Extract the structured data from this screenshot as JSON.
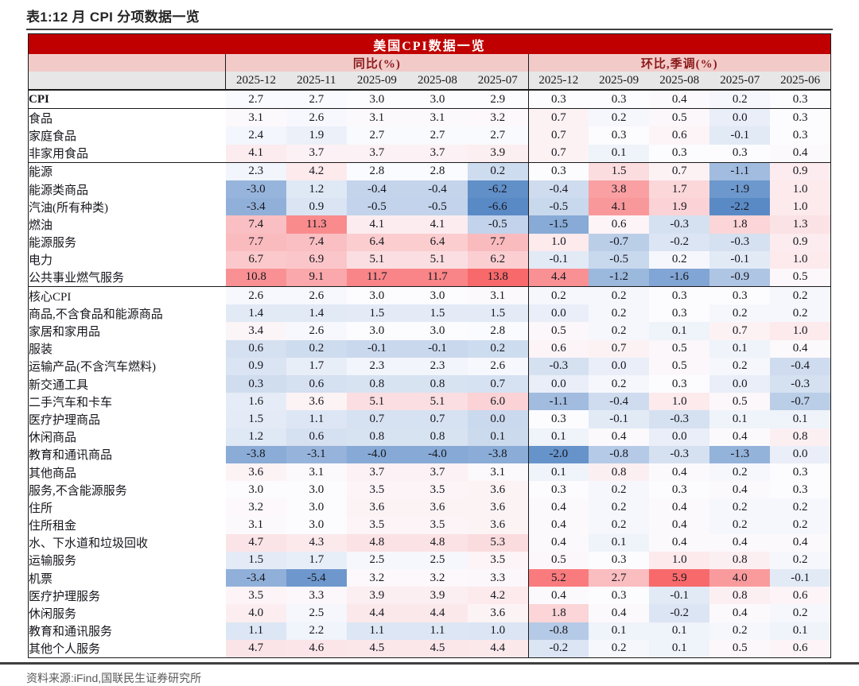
{
  "page": {
    "title": "表1:12 月 CPI 分项数据一览",
    "source_note": "资料来源:iFind,国联民生证券研究所"
  },
  "table": {
    "banner_title": "美国CPI数据一览",
    "group_headers": {
      "yoy": "同比(%)",
      "mom": "环比,季调(%)"
    },
    "columns_yoy": [
      "2025-12",
      "2025-11",
      "2025-09",
      "2025-08",
      "2025-07"
    ],
    "columns_mom": [
      "2025-12",
      "2025-09",
      "2025-08",
      "2025-07",
      "2025-06"
    ],
    "colors": {
      "banner_bg": "#C00000",
      "banner_text": "#FFFFFF",
      "group_bg": "#F2CBC9",
      "group_text": "#8B1A1A",
      "date_bg": "#E7E7E7",
      "border": "#1A1A1A",
      "heat_negative": "#5A8AC6",
      "heat_neutral": "#FCFCFF",
      "heat_positive": "#F8696B"
    },
    "heatmap_scales": {
      "yoy": {
        "min": -6.6,
        "mid": 2.9,
        "max": 13.8
      },
      "mom": {
        "min": -2.2,
        "mid": 0.3,
        "max": 5.9
      }
    },
    "rows": [
      {
        "label": "CPI",
        "indent": 0,
        "bold": true,
        "section_end": true,
        "yoy": [
          "2.7",
          "2.7",
          "3.0",
          "3.0",
          "2.9"
        ],
        "mom": [
          "0.3",
          "0.3",
          "0.4",
          "0.2",
          "0.3"
        ]
      },
      {
        "label": "食品",
        "indent": 0,
        "bold": false,
        "section_end": false,
        "yoy": [
          "3.1",
          "2.6",
          "3.1",
          "3.1",
          "3.2"
        ],
        "mom": [
          "0.7",
          "0.2",
          "0.5",
          "0.0",
          "0.3"
        ]
      },
      {
        "label": "家庭食品",
        "indent": 1,
        "bold": false,
        "section_end": false,
        "yoy": [
          "2.4",
          "1.9",
          "2.7",
          "2.7",
          "2.7"
        ],
        "mom": [
          "0.7",
          "0.3",
          "0.6",
          "-0.1",
          "0.3"
        ]
      },
      {
        "label": "非家用食品",
        "indent": 1,
        "bold": false,
        "section_end": true,
        "yoy": [
          "4.1",
          "3.7",
          "3.7",
          "3.7",
          "3.9"
        ],
        "mom": [
          "0.7",
          "0.1",
          "0.3",
          "0.3",
          "0.4"
        ]
      },
      {
        "label": "能源",
        "indent": 0,
        "bold": false,
        "section_end": false,
        "yoy": [
          "2.3",
          "4.2",
          "2.8",
          "2.8",
          "0.2"
        ],
        "mom": [
          "0.3",
          "1.5",
          "0.7",
          "-1.1",
          "0.9"
        ]
      },
      {
        "label": "能源类商品",
        "indent": 1,
        "bold": false,
        "section_end": false,
        "yoy": [
          "-3.0",
          "1.2",
          "-0.4",
          "-0.4",
          "-6.2"
        ],
        "mom": [
          "-0.4",
          "3.8",
          "1.7",
          "-1.9",
          "1.0"
        ]
      },
      {
        "label": "汽油(所有种类)",
        "indent": 2,
        "bold": false,
        "section_end": false,
        "yoy": [
          "-3.4",
          "0.9",
          "-0.5",
          "-0.5",
          "-6.6"
        ],
        "mom": [
          "-0.5",
          "4.1",
          "1.9",
          "-2.2",
          "1.0"
        ]
      },
      {
        "label": "燃油",
        "indent": 2,
        "bold": false,
        "section_end": false,
        "yoy": [
          "7.4",
          "11.3",
          "4.1",
          "4.1",
          "-0.5"
        ],
        "mom": [
          "-1.5",
          "0.6",
          "-0.3",
          "1.8",
          "1.3"
        ]
      },
      {
        "label": "能源服务",
        "indent": 1,
        "bold": false,
        "section_end": false,
        "yoy": [
          "7.7",
          "7.4",
          "6.4",
          "6.4",
          "7.7"
        ],
        "mom": [
          "1.0",
          "-0.7",
          "-0.2",
          "-0.3",
          "0.9"
        ]
      },
      {
        "label": "电力",
        "indent": 2,
        "bold": false,
        "section_end": false,
        "yoy": [
          "6.7",
          "6.9",
          "5.1",
          "5.1",
          "6.2"
        ],
        "mom": [
          "-0.1",
          "-0.5",
          "0.2",
          "-0.1",
          "1.0"
        ]
      },
      {
        "label": "公共事业燃气服务",
        "indent": 2,
        "bold": false,
        "section_end": true,
        "yoy": [
          "10.8",
          "9.1",
          "11.7",
          "11.7",
          "13.8"
        ],
        "mom": [
          "4.4",
          "-1.2",
          "-1.6",
          "-0.9",
          "0.5"
        ]
      },
      {
        "label": "核心CPI",
        "indent": 0,
        "bold": false,
        "section_end": false,
        "yoy": [
          "2.6",
          "2.6",
          "3.0",
          "3.0",
          "3.1"
        ],
        "mom": [
          "0.2",
          "0.2",
          "0.3",
          "0.3",
          "0.2"
        ]
      },
      {
        "label": "商品,不含食品和能源商品",
        "indent": 1,
        "bold": false,
        "section_end": false,
        "yoy": [
          "1.4",
          "1.4",
          "1.5",
          "1.5",
          "1.5"
        ],
        "mom": [
          "0.0",
          "0.2",
          "0.3",
          "0.2",
          "0.2"
        ]
      },
      {
        "label": "家居和家用品",
        "indent": 2,
        "bold": false,
        "section_end": false,
        "yoy": [
          "3.4",
          "2.6",
          "3.0",
          "3.0",
          "2.8"
        ],
        "mom": [
          "0.5",
          "0.2",
          "0.1",
          "0.7",
          "1.0"
        ]
      },
      {
        "label": "服装",
        "indent": 2,
        "bold": false,
        "section_end": false,
        "yoy": [
          "0.6",
          "0.2",
          "-0.1",
          "-0.1",
          "0.2"
        ],
        "mom": [
          "0.6",
          "0.7",
          "0.5",
          "0.1",
          "0.4"
        ]
      },
      {
        "label": "运输产品(不含汽车燃料)",
        "indent": 2,
        "bold": false,
        "section_end": false,
        "yoy": [
          "0.9",
          "1.7",
          "2.3",
          "2.3",
          "2.6"
        ],
        "mom": [
          "-0.3",
          "0.0",
          "0.5",
          "0.2",
          "-0.4"
        ]
      },
      {
        "label": "新交通工具",
        "indent": 3,
        "bold": false,
        "section_end": false,
        "yoy": [
          "0.3",
          "0.6",
          "0.8",
          "0.8",
          "0.7"
        ],
        "mom": [
          "0.0",
          "0.2",
          "0.3",
          "0.0",
          "-0.3"
        ]
      },
      {
        "label": "二手汽车和卡车",
        "indent": 3,
        "bold": false,
        "section_end": false,
        "yoy": [
          "1.6",
          "3.6",
          "5.1",
          "5.1",
          "6.0"
        ],
        "mom": [
          "-1.1",
          "-0.4",
          "1.0",
          "0.5",
          "-0.7"
        ]
      },
      {
        "label": "医疗护理商品",
        "indent": 2,
        "bold": false,
        "section_end": false,
        "yoy": [
          "1.5",
          "1.1",
          "0.7",
          "0.7",
          "0.0"
        ],
        "mom": [
          "0.3",
          "-0.1",
          "-0.3",
          "0.1",
          "0.1"
        ]
      },
      {
        "label": "休闲商品",
        "indent": 2,
        "bold": false,
        "section_end": false,
        "yoy": [
          "1.2",
          "0.6",
          "0.8",
          "0.8",
          "0.1"
        ],
        "mom": [
          "0.1",
          "0.4",
          "0.0",
          "0.4",
          "0.8"
        ]
      },
      {
        "label": "教育和通讯商品",
        "indent": 2,
        "bold": false,
        "section_end": false,
        "yoy": [
          "-3.8",
          "-3.1",
          "-4.0",
          "-4.0",
          "-3.8"
        ],
        "mom": [
          "-2.0",
          "-0.8",
          "-0.3",
          "-1.3",
          "0.0"
        ]
      },
      {
        "label": "其他商品",
        "indent": 2,
        "bold": false,
        "section_end": false,
        "yoy": [
          "3.6",
          "3.1",
          "3.7",
          "3.7",
          "3.1"
        ],
        "mom": [
          "0.1",
          "0.8",
          "0.4",
          "0.2",
          "0.3"
        ]
      },
      {
        "label": "服务,不含能源服务",
        "indent": 1,
        "bold": false,
        "section_end": false,
        "yoy": [
          "3.0",
          "3.0",
          "3.5",
          "3.5",
          "3.6"
        ],
        "mom": [
          "0.3",
          "0.2",
          "0.3",
          "0.4",
          "0.3"
        ]
      },
      {
        "label": "住所",
        "indent": 2,
        "bold": false,
        "section_end": false,
        "yoy": [
          "3.2",
          "3.0",
          "3.6",
          "3.6",
          "3.6"
        ],
        "mom": [
          "0.4",
          "0.2",
          "0.4",
          "0.2",
          "0.2"
        ]
      },
      {
        "label": "住所租金",
        "indent": 3,
        "bold": false,
        "section_end": false,
        "yoy": [
          "3.1",
          "3.0",
          "3.5",
          "3.5",
          "3.6"
        ],
        "mom": [
          "0.4",
          "0.2",
          "0.4",
          "0.2",
          "0.2"
        ]
      },
      {
        "label": "水、下水道和垃圾回收",
        "indent": 2,
        "bold": false,
        "section_end": false,
        "yoy": [
          "4.7",
          "4.3",
          "4.8",
          "4.8",
          "5.3"
        ],
        "mom": [
          "0.4",
          "0.1",
          "0.4",
          "0.4",
          "0.4"
        ]
      },
      {
        "label": "运输服务",
        "indent": 2,
        "bold": false,
        "section_end": false,
        "yoy": [
          "1.5",
          "1.7",
          "2.5",
          "2.5",
          "3.5"
        ],
        "mom": [
          "0.5",
          "0.3",
          "1.0",
          "0.8",
          "0.2"
        ]
      },
      {
        "label": "机票",
        "indent": 3,
        "bold": false,
        "section_end": false,
        "yoy": [
          "-3.4",
          "-5.4",
          "3.2",
          "3.2",
          "3.3"
        ],
        "mom": [
          "5.2",
          "2.7",
          "5.9",
          "4.0",
          "-0.1"
        ]
      },
      {
        "label": "医疗护理服务",
        "indent": 2,
        "bold": false,
        "section_end": false,
        "yoy": [
          "3.5",
          "3.3",
          "3.9",
          "3.9",
          "4.2"
        ],
        "mom": [
          "0.4",
          "0.3",
          "-0.1",
          "0.8",
          "0.6"
        ]
      },
      {
        "label": "休闲服务",
        "indent": 2,
        "bold": false,
        "section_end": false,
        "yoy": [
          "4.0",
          "2.5",
          "4.4",
          "4.4",
          "3.6"
        ],
        "mom": [
          "1.8",
          "0.4",
          "-0.2",
          "0.4",
          "0.2"
        ]
      },
      {
        "label": "教育和通讯服务",
        "indent": 2,
        "bold": false,
        "section_end": false,
        "yoy": [
          "1.1",
          "2.2",
          "1.1",
          "1.1",
          "1.0"
        ],
        "mom": [
          "-0.8",
          "0.1",
          "0.1",
          "0.2",
          "0.1"
        ]
      },
      {
        "label": "其他个人服务",
        "indent": 2,
        "bold": false,
        "section_end": false,
        "yoy": [
          "4.7",
          "4.6",
          "4.5",
          "4.5",
          "4.4"
        ],
        "mom": [
          "-0.2",
          "0.2",
          "0.1",
          "0.5",
          "0.6"
        ]
      }
    ]
  }
}
